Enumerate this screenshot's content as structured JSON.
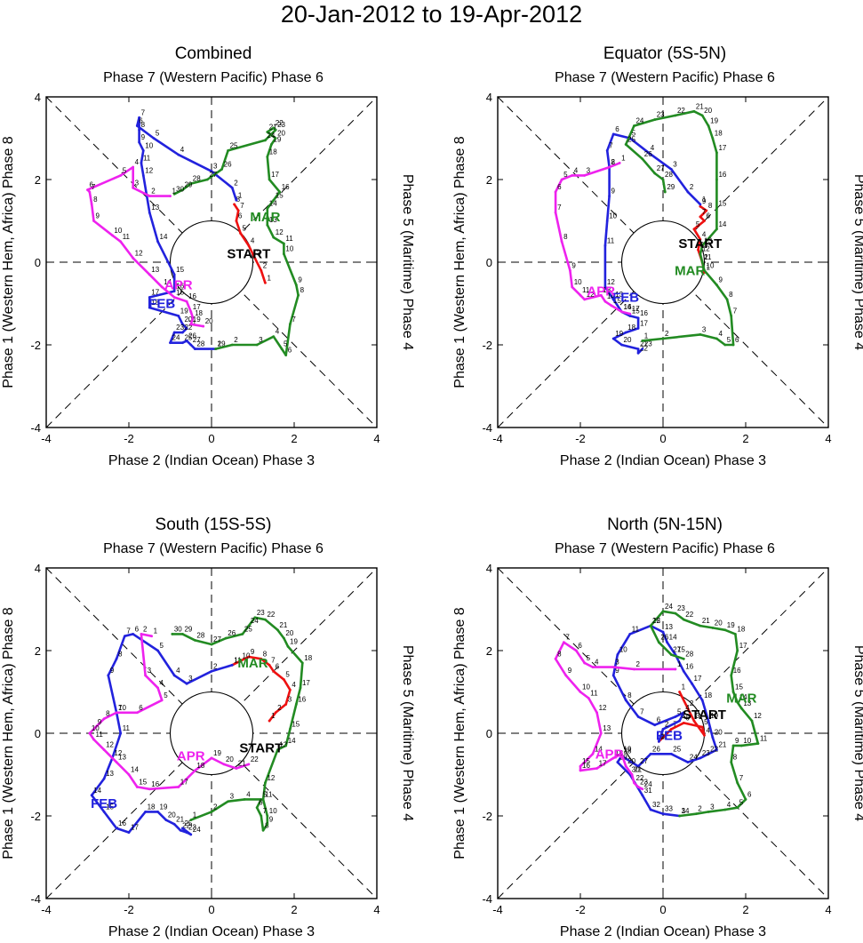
{
  "figure": {
    "title": "20-Jan-2012 to 19-Apr-2012"
  },
  "colors": {
    "jan": "#ee1111",
    "feb": "#2222dd",
    "mar": "#228b22",
    "apr": "#ee22ee",
    "axis": "#000000"
  },
  "labels": {
    "top": "Phase 7 (Western Pacific) Phase 6",
    "bottom": "Phase 2 (Indian Ocean) Phase 3",
    "left": "Phase 1 (Western Hem, Africa) Phase 8",
    "right": "Phase 5 (Maritime) Phase 4",
    "start": "START",
    "month_feb": "FEB",
    "month_mar": "MAR",
    "month_apr": "APR"
  },
  "chart_data": [
    {
      "type": "line",
      "title": "Combined",
      "xlabel": "Phase 2 (Indian Ocean) Phase 3",
      "ylabel": "Phase 1 (Western Hem, Africa) Phase 8",
      "xlim": [
        -4,
        4
      ],
      "ylim": [
        -4,
        4
      ],
      "xticks": [
        -4,
        -2,
        0,
        2,
        4
      ],
      "yticks": [
        -4,
        -2,
        0,
        2,
        4
      ],
      "start": [
        0.9,
        0.2
      ],
      "feb_label": [
        -1.2,
        -1.0
      ],
      "mar_label": [
        1.3,
        1.1
      ],
      "apr_label": [
        -0.8,
        -0.55
      ],
      "series": [
        {
          "name": "Jan",
          "x": [
            1.3,
            1.2,
            1.05,
            0.9,
            0.7,
            0.6,
            0.65,
            0.55
          ],
          "y": [
            -0.5,
            -0.2,
            0.1,
            0.4,
            0.7,
            1.0,
            1.25,
            1.4
          ]
        },
        {
          "name": "Feb",
          "x": [
            0.6,
            0.5,
            0.0,
            -0.8,
            -1.4,
            -1.8,
            -1.75,
            -1.75,
            -1.75,
            -1.65,
            -1.7,
            -1.65,
            -1.5,
            -1.3,
            -0.9,
            -0.9,
            -1.5,
            -1.5,
            -0.8,
            -0.7,
            -0.6,
            -0.7,
            -0.9,
            -1.0,
            -0.7,
            -0.6,
            -0.5,
            -0.4,
            0.1
          ],
          "y": [
            1.5,
            1.8,
            2.2,
            2.6,
            3.0,
            3.3,
            3.5,
            3.2,
            2.9,
            2.7,
            2.4,
            2.1,
            1.2,
            0.5,
            -0.3,
            -0.7,
            -0.85,
            -1.1,
            -1.3,
            -1.5,
            -1.6,
            -1.7,
            -1.7,
            -1.95,
            -1.95,
            -1.9,
            -2.0,
            -2.1,
            -2.1
          ]
        },
        {
          "name": "Mar",
          "x": [
            0.1,
            0.5,
            1.1,
            1.5,
            1.7,
            1.8,
            1.9,
            2.1,
            2.05,
            1.75,
            1.75,
            1.5,
            1.35,
            1.35,
            1.5,
            1.65,
            1.4,
            1.35,
            1.45,
            1.55,
            1.35,
            1.5,
            1.55,
            1.3,
            0.4,
            0.25,
            -0.1,
            -0.5,
            -0.7,
            -0.9
          ],
          "y": [
            -2.1,
            -2.0,
            -2.0,
            -1.8,
            -2.1,
            -2.25,
            -1.5,
            -0.8,
            -0.55,
            0.2,
            0.45,
            0.6,
            0.9,
            1.3,
            1.5,
            1.7,
            2.0,
            2.55,
            2.85,
            3.0,
            3.15,
            3.25,
            3.2,
            2.95,
            2.7,
            2.25,
            2.0,
            1.9,
            1.75,
            1.65
          ]
        },
        {
          "name": "Apr",
          "x": [
            -1.0,
            -1.5,
            -1.9,
            -1.9,
            -2.2,
            -3.0,
            -2.95,
            -2.9,
            -2.85,
            -2.4,
            -2.2,
            -1.9,
            -1.5,
            -1.2,
            -0.9,
            -0.6,
            -0.5,
            -0.45,
            -0.5,
            -0.2
          ],
          "y": [
            1.6,
            1.6,
            1.8,
            2.3,
            2.1,
            1.75,
            1.7,
            1.4,
            1.0,
            0.65,
            0.5,
            0.1,
            -0.3,
            -0.6,
            -0.85,
            -0.95,
            -1.2,
            -1.35,
            -1.5,
            -1.55
          ]
        }
      ]
    },
    {
      "type": "line",
      "title": "Equator (5S-5N)",
      "xlabel": "Phase 2 (Indian Ocean) Phase 3",
      "ylabel": "Phase 1 (Western Hem, Africa) Phase 8",
      "xlim": [
        -4,
        4
      ],
      "ylim": [
        -4,
        4
      ],
      "xticks": [
        -4,
        -2,
        0,
        2,
        4
      ],
      "yticks": [
        -4,
        -2,
        0,
        2,
        4
      ],
      "start": [
        0.9,
        0.45
      ],
      "feb_label": [
        -0.9,
        -0.85
      ],
      "mar_label": [
        0.65,
        -0.2
      ],
      "apr_label": [
        -1.5,
        -0.7
      ],
      "series": [
        {
          "name": "Jan",
          "x": [
            1.0,
            0.95,
            0.85,
            0.9,
            0.75,
            1.0,
            0.9,
            1.05,
            0.9
          ],
          "y": [
            -0.25,
            0.0,
            0.3,
            0.55,
            0.8,
            1.0,
            1.1,
            1.25,
            1.35
          ]
        },
        {
          "name": "Feb",
          "x": [
            0.9,
            0.6,
            0.2,
            -0.35,
            -0.8,
            -1.2,
            -1.35,
            -1.3,
            -1.3,
            -1.35,
            -1.4,
            -1.4,
            -1.2,
            -1.0,
            -0.8,
            -0.6,
            -0.6,
            -0.9,
            -1.2,
            -1.0,
            -0.6,
            -0.6,
            -0.5
          ],
          "y": [
            1.4,
            1.7,
            2.25,
            2.65,
            3.0,
            3.1,
            2.7,
            2.3,
            1.6,
            1.0,
            0.4,
            -0.6,
            -0.9,
            -1.2,
            -1.3,
            -1.35,
            -1.6,
            -1.7,
            -1.85,
            -2.0,
            -2.1,
            -2.2,
            -2.1
          ]
        },
        {
          "name": "Mar",
          "x": [
            -0.5,
            0.0,
            0.9,
            1.3,
            1.5,
            1.7,
            1.65,
            1.55,
            1.3,
            1.0,
            0.95,
            0.9,
            0.95,
            1.3,
            1.3,
            1.3,
            1.3,
            1.2,
            1.1,
            0.95,
            0.75,
            0.3,
            -0.2,
            -0.7,
            -0.9,
            -0.5,
            -0.2,
            0.0,
            0.05
          ],
          "y": [
            -1.9,
            -1.85,
            -1.75,
            -1.85,
            -2.0,
            -2.0,
            -1.3,
            -0.9,
            -0.55,
            -0.2,
            0.0,
            0.2,
            0.4,
            0.8,
            1.3,
            2.0,
            2.65,
            3.0,
            3.3,
            3.55,
            3.65,
            3.55,
            3.45,
            3.3,
            2.85,
            2.5,
            2.15,
            2.0,
            1.7
          ]
        },
        {
          "name": "Apr",
          "x": [
            -1.05,
            -1.3,
            -1.9,
            -2.2,
            -2.45,
            -2.6,
            -2.6,
            -2.45,
            -2.25,
            -2.2,
            -2.0,
            -1.9,
            -1.5,
            -1.4,
            -1.25,
            -1.0,
            -0.8
          ],
          "y": [
            2.4,
            2.3,
            2.1,
            2.1,
            2.0,
            1.7,
            1.2,
            0.5,
            -0.2,
            -0.6,
            -0.8,
            -0.9,
            -0.8,
            -0.95,
            -1.05,
            -1.2,
            -1.25
          ]
        }
      ]
    },
    {
      "type": "line",
      "title": "South (15S-5S)",
      "xlabel": "Phase 2 (Indian Ocean) Phase 3",
      "ylabel": "Phase 1 (Western Hem, Africa) Phase 8",
      "xlim": [
        -4,
        4
      ],
      "ylim": [
        -4,
        4
      ],
      "xticks": [
        -4,
        -2,
        0,
        2,
        4
      ],
      "yticks": [
        -4,
        -2,
        0,
        2,
        4
      ],
      "start": [
        1.2,
        -0.35
      ],
      "feb_label": [
        -2.6,
        -1.7
      ],
      "mar_label": [
        1.0,
        1.7
      ],
      "apr_label": [
        -0.5,
        -0.55
      ],
      "series": [
        {
          "name": "Jan",
          "x": [
            1.4,
            1.55,
            1.8,
            1.9,
            1.75,
            1.5,
            1.4,
            1.2,
            0.9,
            0.7,
            0.5
          ],
          "y": [
            0.3,
            0.5,
            0.7,
            1.05,
            1.3,
            1.5,
            1.65,
            1.8,
            1.85,
            1.75,
            1.65
          ]
        },
        {
          "name": "Feb",
          "x": [
            0.5,
            0.0,
            -0.6,
            -0.9,
            -1.3,
            -1.9,
            -2.1,
            -2.3,
            -2.5,
            -2.3,
            -2.2,
            -2.4,
            -2.6,
            -2.9,
            -2.6,
            -2.3,
            -2.0,
            -1.6,
            -1.3,
            -1.1,
            -0.9,
            -0.75,
            -0.6,
            -0.5,
            -0.7
          ],
          "y": [
            1.65,
            1.5,
            1.2,
            1.4,
            2.0,
            2.4,
            2.35,
            1.8,
            1.4,
            0.5,
            0.0,
            -0.6,
            -1.1,
            -1.5,
            -1.9,
            -2.3,
            -2.4,
            -1.9,
            -1.9,
            -2.1,
            -2.2,
            -2.35,
            -2.4,
            -2.45,
            -2.3
          ]
        },
        {
          "name": "Mar",
          "x": [
            -0.5,
            0.0,
            0.4,
            0.8,
            1.2,
            1.1,
            1.2,
            1.25,
            1.35,
            1.35,
            1.25,
            1.3,
            1.6,
            1.8,
            1.9,
            2.05,
            2.15,
            2.2,
            1.85,
            1.75,
            1.6,
            1.3,
            1.05,
            0.9,
            0.75,
            0.35,
            0.0,
            -0.4,
            -0.7,
            -0.95
          ],
          "y": [
            -2.1,
            -1.9,
            -1.65,
            -1.6,
            -1.6,
            -1.8,
            -2.0,
            -2.35,
            -2.2,
            -2.0,
            -1.6,
            -1.2,
            -0.4,
            -0.3,
            0.1,
            0.7,
            1.1,
            1.7,
            2.1,
            2.3,
            2.5,
            2.75,
            2.8,
            2.6,
            2.4,
            2.3,
            2.15,
            2.25,
            2.4,
            2.4
          ]
        },
        {
          "name": "Apr",
          "x": [
            -1.45,
            -1.7,
            -1.6,
            -1.3,
            -1.2,
            -1.8,
            -2.3,
            -2.6,
            -2.8,
            -2.95,
            -2.85,
            -2.6,
            -2.3,
            -2.0,
            -1.8,
            -1.5,
            -0.8,
            -0.4,
            0.0,
            0.3,
            0.6,
            0.9
          ],
          "y": [
            2.35,
            2.4,
            1.4,
            1.1,
            0.8,
            0.5,
            0.5,
            0.35,
            0.15,
            0.0,
            -0.15,
            -0.4,
            -0.7,
            -1.0,
            -1.3,
            -1.35,
            -1.3,
            -0.9,
            -0.6,
            -0.75,
            -0.85,
            -0.75
          ]
        }
      ]
    },
    {
      "type": "line",
      "title": "North (5N-15N)",
      "xlabel": "Phase 2 (Indian Ocean) Phase 3",
      "ylabel": "Phase 1 (Western Hem, Africa) Phase 8",
      "xlim": [
        -4,
        4
      ],
      "ylim": [
        -4,
        4
      ],
      "xticks": [
        -4,
        -2,
        0,
        2,
        4
      ],
      "yticks": [
        -4,
        -2,
        0,
        2,
        4
      ],
      "start": [
        1.0,
        0.45
      ],
      "feb_label": [
        0.15,
        -0.05
      ],
      "mar_label": [
        1.9,
        0.85
      ],
      "apr_label": [
        -1.3,
        -0.5
      ],
      "series": [
        {
          "name": "Jan",
          "x": [
            0.4,
            0.6,
            0.75,
            1.0,
            0.95,
            0.5,
            0.2,
            -0.1
          ],
          "y": [
            1.0,
            0.6,
            0.3,
            -0.05,
            0.15,
            0.25,
            0.1,
            -0.2
          ]
        },
        {
          "name": "Feb",
          "x": [
            -0.1,
            0.0,
            0.4,
            0.5,
            0.3,
            -0.2,
            -0.6,
            -0.9,
            -1.2,
            -1.1,
            -0.8,
            -0.3,
            0.0,
            0.1,
            0.3,
            0.5,
            0.7,
            0.95,
            1.1,
            1.2,
            1.3,
            1.1,
            0.9,
            0.6,
            0.2,
            -0.3,
            -0.6,
            -1.0,
            -1.1,
            -0.8,
            -0.5,
            -0.3,
            0.0,
            0.4
          ],
          "y": [
            -0.2,
            0.1,
            0.3,
            0.5,
            0.4,
            0.2,
            0.4,
            0.8,
            1.4,
            1.9,
            2.4,
            2.6,
            2.45,
            2.2,
            1.9,
            1.5,
            1.2,
            0.8,
            0.3,
            -0.1,
            -0.4,
            -0.5,
            -0.6,
            -0.7,
            -0.5,
            -0.5,
            -0.8,
            -0.55,
            -0.7,
            -1.0,
            -1.5,
            -1.85,
            -1.95,
            -2.0
          ]
        },
        {
          "name": "Mar",
          "x": [
            0.4,
            0.8,
            1.1,
            1.5,
            1.8,
            2.0,
            1.8,
            1.65,
            1.7,
            1.9,
            2.3,
            2.15,
            1.9,
            1.8,
            1.7,
            1.65,
            1.8,
            1.75,
            1.5,
            1.2,
            0.9,
            0.5,
            0.3,
            0.0,
            -0.3,
            -0.1,
            0.2,
            0.5
          ],
          "y": [
            -2.0,
            -1.95,
            -1.9,
            -1.85,
            -1.8,
            -1.6,
            -1.2,
            -0.7,
            -0.3,
            -0.3,
            -0.25,
            0.3,
            0.6,
            0.75,
            1.0,
            1.4,
            2.0,
            2.4,
            2.5,
            2.55,
            2.6,
            2.75,
            2.9,
            2.95,
            2.6,
            2.2,
            1.9,
            1.8
          ]
        },
        {
          "name": "Apr",
          "x": [
            0.3,
            -0.7,
            -1.2,
            -1.7,
            -1.9,
            -2.1,
            -2.4,
            -2.6,
            -2.35,
            -2.0,
            -1.8,
            -1.6,
            -1.5,
            -1.7,
            -2.0,
            -2.0,
            -1.6,
            -1.2,
            -1.0,
            -0.9,
            -0.75,
            -0.7,
            -0.6,
            -0.5
          ],
          "y": [
            1.55,
            1.55,
            1.6,
            1.6,
            1.7,
            2.0,
            2.2,
            1.8,
            1.4,
            1.0,
            0.85,
            0.5,
            0.0,
            -0.5,
            -0.8,
            -0.9,
            -0.85,
            -0.6,
            -0.5,
            -0.8,
            -1.0,
            -1.2,
            -1.3,
            -1.35
          ]
        }
      ]
    }
  ]
}
